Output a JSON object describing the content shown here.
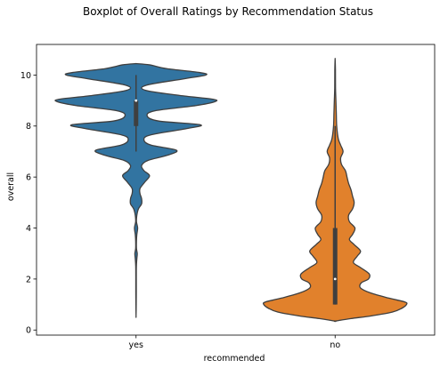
{
  "chart_data": {
    "type": "violin",
    "title": "Boxplot of Overall Ratings by Recommendation Status",
    "xlabel": "recommended",
    "ylabel": "overall",
    "categories": [
      "yes",
      "no"
    ],
    "ylim": [
      -0.2,
      11.2
    ],
    "yticks": [
      0,
      2,
      4,
      6,
      8,
      10
    ],
    "grid": false,
    "colors": {
      "yes": "#3274a1",
      "no": "#e1812c",
      "outline": "#3f3f3f"
    },
    "series": [
      {
        "category": "yes",
        "box": {
          "q1": 8,
          "median": 9,
          "q3": 9,
          "whisker_low": 7,
          "whisker_high": 10
        },
        "range": [
          0.55,
          10.45
        ],
        "density": [
          [
            10.45,
            0.0
          ],
          [
            10.4,
            0.17
          ],
          [
            10.25,
            0.39
          ],
          [
            10.1,
            0.8
          ],
          [
            10.0,
            0.88
          ],
          [
            9.85,
            0.6
          ],
          [
            9.6,
            0.13
          ],
          [
            9.4,
            0.12
          ],
          [
            9.2,
            0.55
          ],
          [
            9.05,
            0.97
          ],
          [
            8.95,
            0.99
          ],
          [
            8.8,
            0.75
          ],
          [
            8.6,
            0.24
          ],
          [
            8.4,
            0.14
          ],
          [
            8.2,
            0.28
          ],
          [
            8.05,
            0.81
          ],
          [
            7.9,
            0.64
          ],
          [
            7.65,
            0.18
          ],
          [
            7.45,
            0.1
          ],
          [
            7.25,
            0.19
          ],
          [
            7.05,
            0.51
          ],
          [
            6.85,
            0.39
          ],
          [
            6.65,
            0.15
          ],
          [
            6.45,
            0.07
          ],
          [
            6.25,
            0.1
          ],
          [
            6.05,
            0.17
          ],
          [
            5.8,
            0.11
          ],
          [
            5.55,
            0.05
          ],
          [
            5.35,
            0.05
          ],
          [
            5.15,
            0.07
          ],
          [
            4.95,
            0.07
          ],
          [
            4.75,
            0.03
          ],
          [
            4.5,
            0.01
          ],
          [
            4.25,
            0.005
          ],
          [
            4.0,
            0.02
          ],
          [
            3.75,
            0.01
          ],
          [
            3.5,
            0.005
          ],
          [
            3.2,
            0.005
          ],
          [
            3.0,
            0.015
          ],
          [
            2.8,
            0.01
          ],
          [
            2.5,
            0.004
          ],
          [
            2.0,
            0.003
          ],
          [
            1.5,
            0.003
          ],
          [
            1.0,
            0.002
          ],
          [
            0.55,
            0.0
          ]
        ]
      },
      {
        "category": "no",
        "box": {
          "q1": 1,
          "median": 2,
          "q3": 4,
          "whisker_low": 1,
          "whisker_high": 8
        },
        "range": [
          0.35,
          10.65
        ],
        "density": [
          [
            10.65,
            0.0
          ],
          [
            10.2,
            0.004
          ],
          [
            9.5,
            0.005
          ],
          [
            9.0,
            0.01
          ],
          [
            8.5,
            0.015
          ],
          [
            8.0,
            0.02
          ],
          [
            7.5,
            0.04
          ],
          [
            7.25,
            0.07
          ],
          [
            7.0,
            0.1
          ],
          [
            6.75,
            0.07
          ],
          [
            6.5,
            0.08
          ],
          [
            6.25,
            0.13
          ],
          [
            6.0,
            0.15
          ],
          [
            5.75,
            0.17
          ],
          [
            5.5,
            0.2
          ],
          [
            5.25,
            0.22
          ],
          [
            5.0,
            0.24
          ],
          [
            4.75,
            0.22
          ],
          [
            4.5,
            0.17
          ],
          [
            4.25,
            0.18
          ],
          [
            4.0,
            0.25
          ],
          [
            3.75,
            0.22
          ],
          [
            3.55,
            0.18
          ],
          [
            3.35,
            0.24
          ],
          [
            3.1,
            0.32
          ],
          [
            2.9,
            0.28
          ],
          [
            2.65,
            0.23
          ],
          [
            2.45,
            0.32
          ],
          [
            2.2,
            0.43
          ],
          [
            2.0,
            0.42
          ],
          [
            1.85,
            0.33
          ],
          [
            1.65,
            0.32
          ],
          [
            1.45,
            0.45
          ],
          [
            1.25,
            0.68
          ],
          [
            1.1,
            0.88
          ],
          [
            1.0,
            0.9
          ],
          [
            0.85,
            0.84
          ],
          [
            0.7,
            0.72
          ],
          [
            0.55,
            0.45
          ],
          [
            0.45,
            0.2
          ],
          [
            0.35,
            0.0
          ]
        ]
      }
    ]
  }
}
